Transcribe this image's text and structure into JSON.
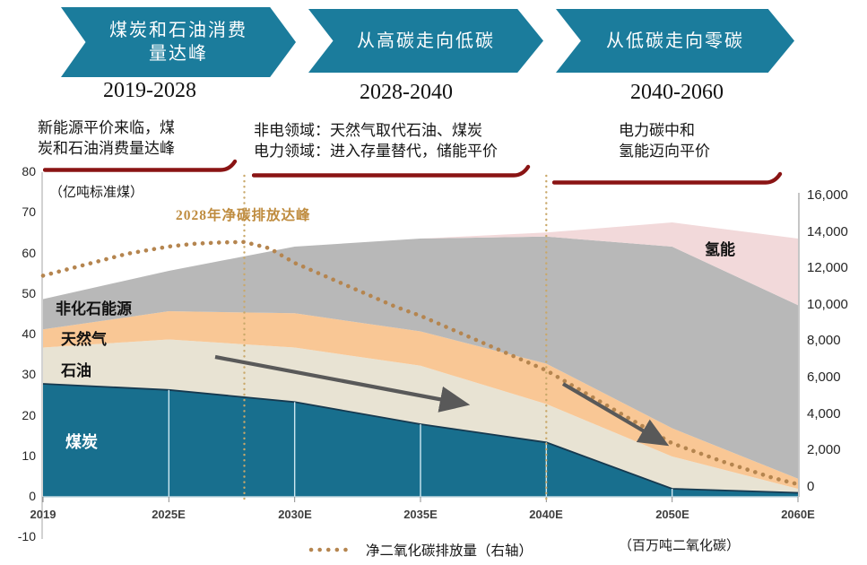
{
  "banners": [
    {
      "lines": [
        "煤炭和石油消费",
        "量达峰"
      ],
      "period": "2019-2028"
    },
    {
      "lines": [
        "从高碳走向低碳"
      ],
      "period": "2028-2040"
    },
    {
      "lines": [
        "从低碳走向零碳"
      ],
      "period": "2040-2060"
    }
  ],
  "annotations": [
    {
      "lines": [
        "新能源平价来临，煤",
        "炭和石油消费量达峰"
      ]
    },
    {
      "lines": [
        "非电领域：天然气取代石油、煤炭",
        "电力领域：进入存量替代，储能平价"
      ]
    },
    {
      "lines": [
        "电力碳中和",
        "氢能迈向平价"
      ]
    }
  ],
  "axis": {
    "left_unit": "（亿吨标准煤）",
    "right_unit": "（百万吨二氧化碳）",
    "left_ticks": [
      "80",
      "70",
      "60",
      "50",
      "40",
      "30",
      "20",
      "10",
      "0",
      "-10"
    ],
    "right_ticks": [
      "16,000",
      "14,000",
      "12,000",
      "10,000",
      "8,000",
      "6,000",
      "4,000",
      "2,000",
      "0"
    ],
    "x_ticks": [
      "2019",
      "2025E",
      "2030E",
      "2035E",
      "2040E",
      "2050E",
      "2060E"
    ]
  },
  "labels": {
    "area_coal": "煤炭",
    "area_oil": "石油",
    "area_gas": "天然气",
    "area_nonfossil": "非化石能源",
    "area_hydrogen": "氢能",
    "peak_annotation": "2028年净碳排放达峰",
    "legend_co2": "净二氧化碳排放量（右轴）"
  },
  "colors": {
    "banner_teal": "#1b7c9c",
    "coal_teal": "#186f8e",
    "oil_beige": "#e8e3d3",
    "gas_peach": "#f9c795",
    "nonfossil_gray": "#b8b8b8",
    "hydrogen_pink": "#f2d9da",
    "co2_dotted": "#b5854f",
    "peak_text_gold": "#bf8c3f",
    "bracket_red": "#8a1414",
    "trend_arrow_gray": "#595959"
  },
  "chart_data": {
    "type": "area",
    "stacked": true,
    "categories": [
      "2019",
      "2025E",
      "2030E",
      "2035E",
      "2040E",
      "2050E",
      "2060E"
    ],
    "category_years": [
      2019,
      2025,
      2030,
      2035,
      2040,
      2050,
      2060
    ],
    "ylabel_left": "亿吨标准煤",
    "ylabel_right": "百万吨二氧化碳",
    "ylim_left": [
      -10,
      80
    ],
    "ylim_right": [
      0,
      16000
    ],
    "grid": false,
    "legend_position": "bottom",
    "series": [
      {
        "name": "煤炭",
        "type": "area",
        "axis": "left",
        "color": "#186f8e",
        "values": [
          28,
          26.5,
          23.5,
          18,
          13.5,
          2,
          1
        ]
      },
      {
        "name": "石油",
        "type": "area",
        "axis": "left",
        "color": "#e8e3d3",
        "values": [
          9,
          12.5,
          13.5,
          14.5,
          9.5,
          8,
          1
        ]
      },
      {
        "name": "天然气",
        "type": "area",
        "axis": "left",
        "color": "#f9c795",
        "values": [
          4.5,
          7,
          8.5,
          8.5,
          10,
          7,
          2.5
        ]
      },
      {
        "name": "非化石能源",
        "type": "area",
        "axis": "left",
        "color": "#b8b8b8",
        "values": [
          7.5,
          10,
          16.5,
          23,
          31.5,
          45,
          43
        ]
      },
      {
        "name": "氢能",
        "type": "area",
        "axis": "left",
        "color": "#f2d9da",
        "values": [
          0,
          0,
          0,
          0,
          1,
          6,
          16.5
        ]
      }
    ],
    "co2_line": {
      "name": "净二氧化碳排放量（右轴）",
      "axis": "right",
      "style": "dotted",
      "color": "#b5854f",
      "points": [
        [
          2019,
          11600
        ],
        [
          2020,
          11900
        ],
        [
          2021,
          12200
        ],
        [
          2022,
          12500
        ],
        [
          2023,
          12800
        ],
        [
          2024,
          13000
        ],
        [
          2025,
          13200
        ],
        [
          2026,
          13350
        ],
        [
          2027,
          13420
        ],
        [
          2028,
          13450
        ],
        [
          2029,
          13100
        ],
        [
          2030,
          12300
        ],
        [
          2031,
          11700
        ],
        [
          2032,
          11100
        ],
        [
          2033,
          10500
        ],
        [
          2034,
          9900
        ],
        [
          2035,
          9400
        ],
        [
          2036,
          8800
        ],
        [
          2037,
          8200
        ],
        [
          2038,
          7600
        ],
        [
          2039,
          7000
        ],
        [
          2040,
          6400
        ],
        [
          2042,
          5600
        ],
        [
          2044,
          4800
        ],
        [
          2046,
          4000
        ],
        [
          2048,
          3200
        ],
        [
          2050,
          2400
        ],
        [
          2052,
          1900
        ],
        [
          2054,
          1400
        ],
        [
          2056,
          950
        ],
        [
          2058,
          500
        ],
        [
          2060,
          150
        ]
      ],
      "peak": {
        "year": 2028,
        "value": 13450
      }
    },
    "vline_years": [
      2028,
      2040
    ]
  }
}
